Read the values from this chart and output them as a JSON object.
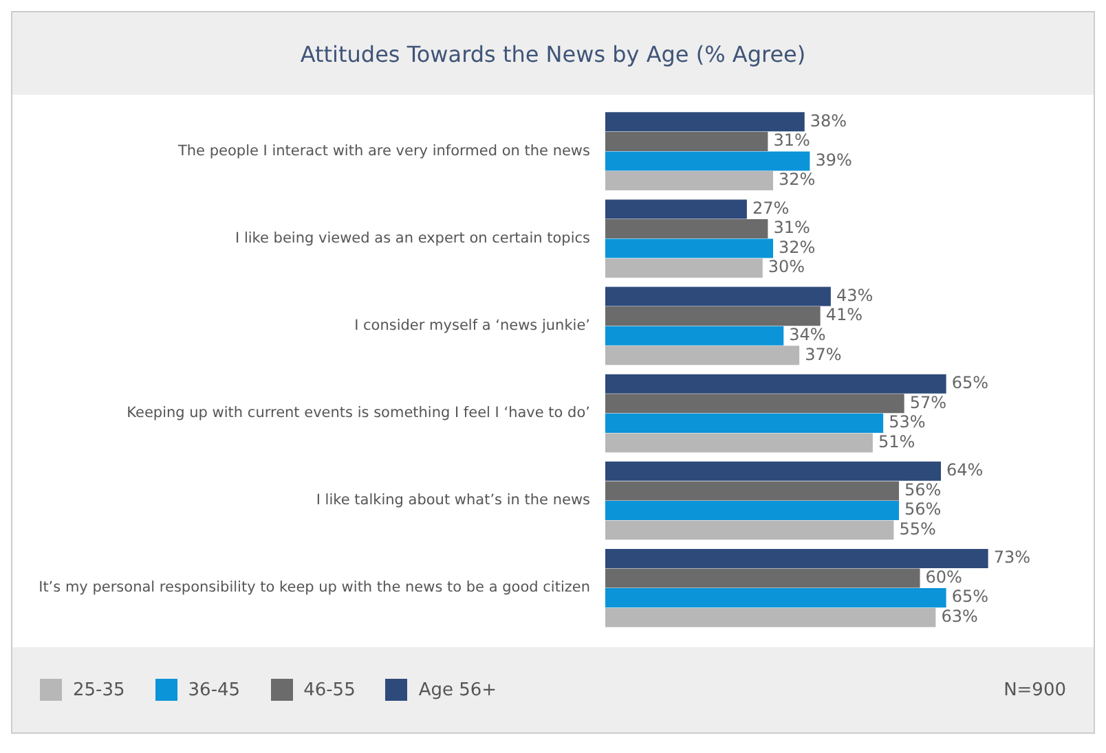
{
  "chart_data": {
    "type": "bar",
    "orientation": "horizontal",
    "title": "Attitudes Towards the News by Age (% Agree)",
    "categories": [
      "The people I interact with are very informed on the news",
      "I like being viewed as an expert on certain topics",
      "I consider myself a ‘news junkie’",
      "Keeping up with current events is something I feel I ‘have to do’",
      "I like talking about what’s in the news",
      "It’s my personal responsibility to keep up with the news to be a good citizen"
    ],
    "series": [
      {
        "name": "25-35",
        "color": "#b7b7b7",
        "values": [
          32,
          30,
          37,
          51,
          55,
          63
        ],
        "value_labels": [
          "32%",
          "30%",
          "37%",
          "51%",
          "55%",
          "63%"
        ]
      },
      {
        "name": "36-45",
        "color": "#0b94d8",
        "values": [
          39,
          32,
          34,
          53,
          56,
          65
        ],
        "value_labels": [
          "39%",
          "32%",
          "34%",
          "53%",
          "56%",
          "65%"
        ]
      },
      {
        "name": "46-55",
        "color": "#6b6b6b",
        "values": [
          31,
          31,
          41,
          57,
          56,
          60
        ],
        "value_labels": [
          "31%",
          "31%",
          "41%",
          "57%",
          "56%",
          "60%"
        ]
      },
      {
        "name": "Age 56+",
        "color": "#2e4a7a",
        "values": [
          38,
          27,
          43,
          65,
          64,
          73
        ],
        "value_labels": [
          "38%",
          "27%",
          "43%",
          "65%",
          "64%",
          "73%"
        ]
      }
    ],
    "grid": false,
    "legend": "bottom",
    "annotations": [
      "N=900"
    ]
  }
}
